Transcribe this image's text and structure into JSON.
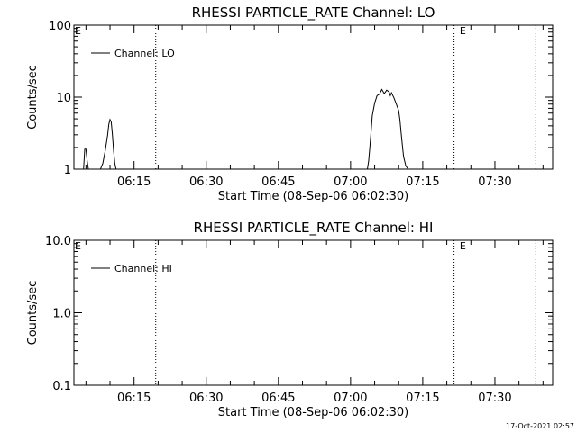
{
  "chart_data": [
    {
      "type": "line",
      "title": "RHESSI PARTICLE_RATE Channel: LO",
      "xlabel": "Start Time (08-Sep-06 06:02:30)",
      "ylabel": "Counts/sec",
      "yscale": "log",
      "ylim": [
        1,
        100
      ],
      "yticks": [
        "1",
        "10",
        "100"
      ],
      "xlim": [
        "06:02:30",
        "07:42:00"
      ],
      "xticks": [
        "06:15",
        "06:30",
        "06:45",
        "07:00",
        "07:15",
        "07:30"
      ],
      "grid": false,
      "legend": {
        "position": "top-left",
        "entries": [
          "Channel: LO"
        ]
      },
      "markers": {
        "label": "E",
        "times": [
          "06:02:30",
          "07:22:30"
        ],
        "dotted_lines": [
          "06:19:30",
          "07:21:30",
          "07:38:30"
        ]
      },
      "series": [
        {
          "name": "Channel: LO",
          "x": [
            "06:04:30",
            "06:04:45",
            "06:05:00",
            "06:05:15",
            "06:05:30",
            "06:08:00",
            "06:08:30",
            "06:09:00",
            "06:09:30",
            "06:09:45",
            "06:10:00",
            "06:10:15",
            "06:10:30",
            "06:10:45",
            "06:11:00",
            "06:11:15",
            "06:11:30",
            "07:03:30",
            "07:03:45",
            "07:04:00",
            "07:04:15",
            "07:04:30",
            "07:05:00",
            "07:05:30",
            "07:06:00",
            "07:06:30",
            "07:07:00",
            "07:07:30",
            "07:08:00",
            "07:08:15",
            "07:08:30",
            "07:09:00",
            "07:09:30",
            "07:10:00",
            "07:10:15",
            "07:10:30",
            "07:10:45",
            "07:11:00",
            "07:11:30",
            "07:12:00"
          ],
          "values": [
            1,
            1.9,
            1.9,
            1.3,
            1,
            1,
            1.2,
            1.8,
            3.0,
            4.2,
            4.9,
            4.5,
            3.0,
            1.8,
            1.2,
            1,
            1,
            1,
            1.3,
            2.0,
            3.2,
            5.5,
            8.2,
            10.5,
            11.0,
            12.8,
            11.2,
            12.5,
            11.8,
            10.5,
            11.5,
            9.8,
            8.0,
            6.5,
            4.8,
            3.2,
            2.2,
            1.5,
            1.1,
            1
          ]
        }
      ]
    },
    {
      "type": "line",
      "title": "RHESSI PARTICLE_RATE Channel: HI",
      "xlabel": "Start Time (08-Sep-06 06:02:30)",
      "ylabel": "Counts/sec",
      "yscale": "log",
      "ylim": [
        0.1,
        10
      ],
      "yticks": [
        "0.1",
        "1.0",
        "10.0"
      ],
      "xlim": [
        "06:02:30",
        "07:42:00"
      ],
      "xticks": [
        "06:15",
        "06:30",
        "06:45",
        "07:00",
        "07:15",
        "07:30"
      ],
      "grid": false,
      "legend": {
        "position": "top-left",
        "entries": [
          "Channel: HI"
        ]
      },
      "markers": {
        "label": "E",
        "times": [
          "06:02:30",
          "07:22:30"
        ],
        "dotted_lines": [
          "06:19:30",
          "07:21:30",
          "07:38:30"
        ]
      },
      "series": [
        {
          "name": "Channel: HI",
          "x": [],
          "values": []
        }
      ]
    }
  ],
  "footer": {
    "timestamp": "17-Oct-2021 02:57"
  }
}
